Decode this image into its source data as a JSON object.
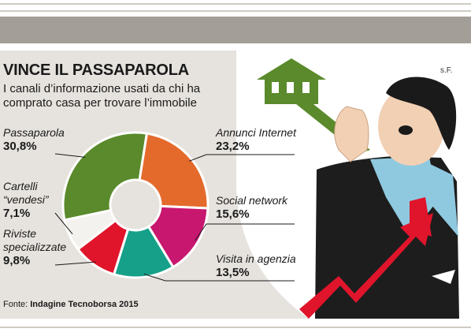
{
  "title": "VINCE IL PASSAPAROLA",
  "subtitle": "I canali d’informazione usati da chi ha comprato casa per trovare l’immobile",
  "credit": "s.F.",
  "source_label": "Fonte:",
  "source_name": "Indagine Tecnoborsa 2015",
  "colors": {
    "panel": "#e6e3de",
    "passaparola": "#5a8a2b",
    "annunci": "#e46a2c",
    "social": "#c8176f",
    "visita": "#16a08a",
    "riviste": "#e0152b",
    "cartelli": "#f4f2ee"
  },
  "labels": {
    "passaparola": {
      "name": "Passaparola",
      "value": "30,8%"
    },
    "annunci": {
      "name": "Annunci Internet",
      "value": "23,2%"
    },
    "social": {
      "name": "Social network",
      "value": "15,6%"
    },
    "visita": {
      "name": "Visita in agenzia",
      "value": "13,5%"
    },
    "riviste": {
      "name": "Riviste\nspecializzate",
      "value": "9,8%"
    },
    "cartelli": {
      "name": "Cartelli\n“vendesi”",
      "value": "7,1%"
    }
  },
  "chart_data": {
    "type": "pie",
    "donut": true,
    "title": "VINCE IL PASSAPAROLA",
    "subtitle": "I canali d’informazione usati da chi ha comprato casa per trovare l’immobile",
    "start_angle_deg": 9,
    "slices": [
      {
        "key": "annunci",
        "label": "Annunci Internet",
        "value": 23.2,
        "color": "#e46a2c"
      },
      {
        "key": "social",
        "label": "Social network",
        "value": 15.6,
        "color": "#c8176f"
      },
      {
        "key": "visita",
        "label": "Visita in agenzia",
        "value": 13.5,
        "color": "#16a08a"
      },
      {
        "key": "riviste",
        "label": "Riviste specializzate",
        "value": 9.8,
        "color": "#e0152b"
      },
      {
        "key": "cartelli",
        "label": "Cartelli “vendesi”",
        "value": 7.1,
        "color": "#f4f2ee"
      },
      {
        "key": "passaparola",
        "label": "Passaparola",
        "value": 30.8,
        "color": "#5a8a2b"
      }
    ],
    "source": "Fonte: Indagine Tecnoborsa 2015"
  }
}
